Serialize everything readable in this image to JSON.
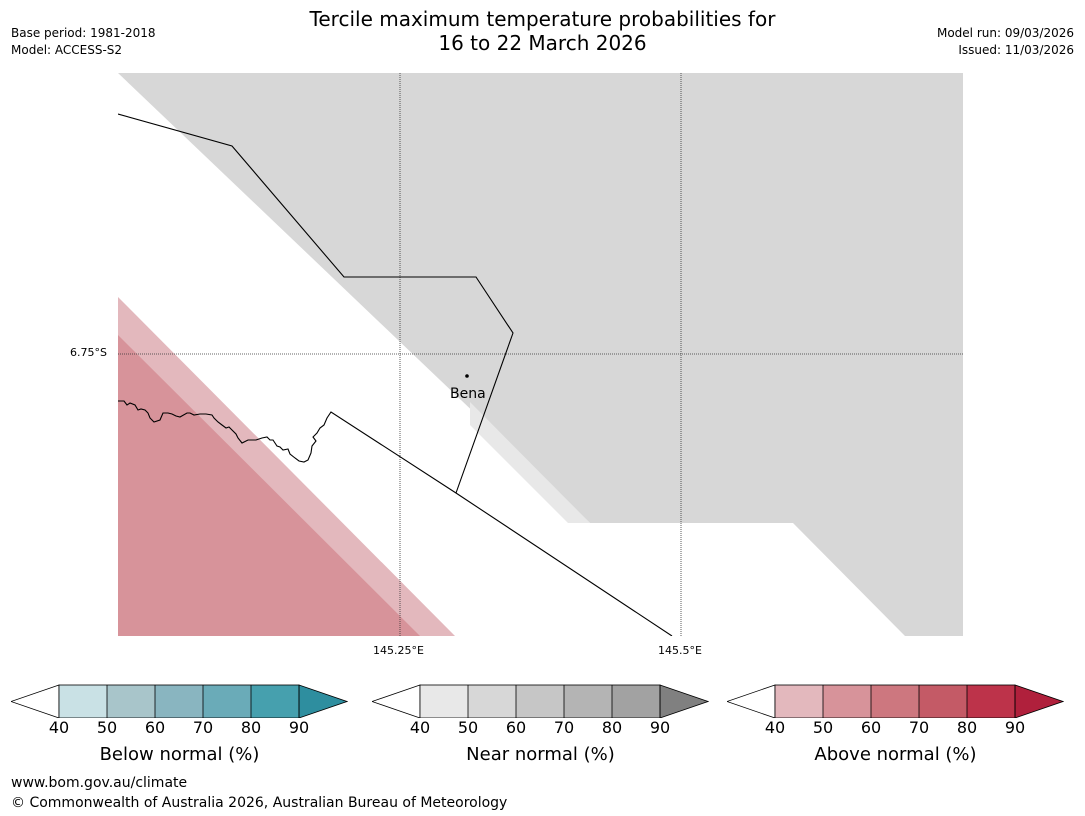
{
  "header": {
    "title_line1": "Tercile maximum temperature probabilities for",
    "title_line2": "16 to 22 March 2026",
    "base_period": "Base period: 1981-2018",
    "model": "Model: ACCESS-S2",
    "model_run": "Model run: 09/03/2026",
    "issued": "Issued: 11/03/2026"
  },
  "map": {
    "lat_label": "6.75°S",
    "lon_labels": [
      "145.25°E",
      "145.5°E"
    ],
    "places": [
      {
        "name": "Bena"
      }
    ]
  },
  "legend": {
    "ticks": [
      "40",
      "50",
      "60",
      "70",
      "80",
      "90"
    ],
    "below": {
      "label": "Below normal (%)",
      "colors": [
        "#ffffff",
        "#c9e1e5",
        "#a8c5ca",
        "#89b5c0",
        "#6aabb8",
        "#46a0ae",
        "#2e8e9f"
      ]
    },
    "near": {
      "label": "Near normal (%)",
      "colors": [
        "#ffffff",
        "#e8e8e8",
        "#d7d7d7",
        "#c6c6c6",
        "#b4b4b4",
        "#a2a2a2",
        "#808080"
      ]
    },
    "above": {
      "label": "Above normal (%)",
      "colors": [
        "#ffffff",
        "#e3b8bd",
        "#d7939a",
        "#cd777f",
        "#c45a66",
        "#bd334a",
        "#b0203c"
      ]
    }
  },
  "footer": {
    "url": "www.bom.gov.au/climate",
    "copyright": "© Commonwealth of Australia 2026, Australian Bureau of Meteorology"
  }
}
